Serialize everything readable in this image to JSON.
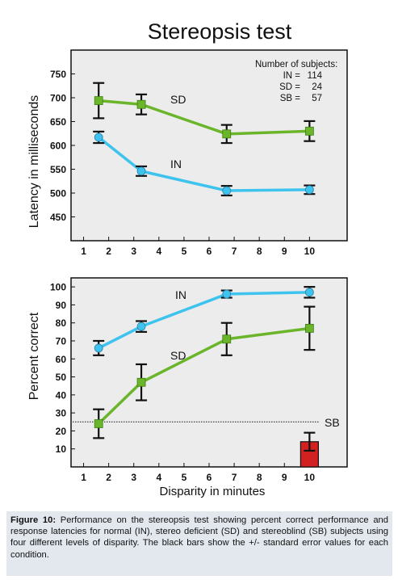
{
  "figure_title": "Stereopsis test",
  "caption": {
    "label": "Figure 10:",
    "text": " Performance on the stereopsis test showing percent correct performance and response latencies for normal (IN), stereo deficient (SD) and stereoblind (SB) subjects using four different levels of disparity. The black bars show the +/- standard error values for each condition."
  },
  "colors": {
    "IN": "#3ec3ef",
    "SD": "#6ab52a",
    "SB": "#d32020",
    "error_bars": "#111111"
  },
  "chart_data": [
    {
      "type": "line",
      "ylabel": "Latency in milliseconds",
      "xlabel": "",
      "xlim": [
        0.5,
        11.5
      ],
      "ylim": [
        400,
        800
      ],
      "x_ticks": [
        1,
        2,
        3,
        4,
        5,
        6,
        7,
        8,
        9,
        10
      ],
      "y_ticks": [
        450,
        500,
        550,
        600,
        650,
        700,
        750
      ],
      "grid": false,
      "legend": {
        "heading": "Number of subjects:",
        "rows": [
          {
            "label": "IN =",
            "value": "114"
          },
          {
            "label": "SD =",
            "value": "24"
          },
          {
            "label": "SB =",
            "value": "57"
          }
        ]
      },
      "series": [
        {
          "name": "SD",
          "marker": "square",
          "x": [
            1.6,
            3.3,
            6.7,
            10
          ],
          "y": [
            694,
            686,
            624,
            630
          ],
          "err": [
            37,
            21,
            19,
            21
          ]
        },
        {
          "name": "IN",
          "marker": "circle",
          "x": [
            1.6,
            3.3,
            6.7,
            10
          ],
          "y": [
            617,
            546,
            505,
            507
          ],
          "err": [
            12,
            10,
            10,
            9
          ]
        }
      ]
    },
    {
      "type": "line",
      "ylabel": "Percent correct",
      "xlabel": "Disparity in minutes",
      "xlim": [
        0.5,
        11.5
      ],
      "ylim": [
        0,
        105
      ],
      "x_ticks": [
        1,
        2,
        3,
        4,
        5,
        6,
        7,
        8,
        9,
        10
      ],
      "y_ticks": [
        10,
        20,
        30,
        40,
        50,
        60,
        70,
        80,
        90,
        100
      ],
      "grid": false,
      "reference_line": {
        "y": 25,
        "style": "dotted"
      },
      "series": [
        {
          "name": "IN",
          "marker": "circle",
          "x": [
            1.6,
            3.3,
            6.7,
            10
          ],
          "y": [
            66,
            78,
            96,
            97
          ],
          "err": [
            4,
            3,
            2,
            3
          ]
        },
        {
          "name": "SD",
          "marker": "square",
          "x": [
            1.6,
            3.3,
            6.7,
            10
          ],
          "y": [
            24,
            47,
            71,
            77
          ],
          "err": [
            8,
            10,
            9,
            12
          ]
        },
        {
          "name": "SB",
          "marker": "bar",
          "x": [
            10
          ],
          "y": [
            14
          ],
          "err": [
            5
          ]
        }
      ]
    }
  ]
}
